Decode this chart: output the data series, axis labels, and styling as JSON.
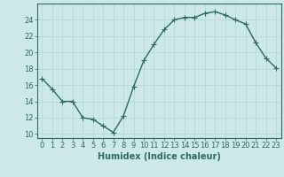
{
  "x": [
    0,
    1,
    2,
    3,
    4,
    5,
    6,
    7,
    8,
    9,
    10,
    11,
    12,
    13,
    14,
    15,
    16,
    17,
    18,
    19,
    20,
    21,
    22,
    23
  ],
  "y": [
    16.8,
    15.5,
    14.0,
    14.0,
    12.0,
    11.8,
    11.0,
    10.2,
    12.2,
    15.8,
    19.0,
    21.0,
    22.8,
    24.0,
    24.3,
    24.3,
    24.8,
    25.0,
    24.6,
    24.0,
    23.5,
    21.2,
    19.3,
    18.1
  ],
  "line_color": "#2e6b5e",
  "marker": "+",
  "markersize": 4,
  "linewidth": 1.0,
  "background_color": "#cce8e8",
  "grid_major_color": "#b8d8d8",
  "grid_minor_color": "#d8eaea",
  "xlabel": "Humidex (Indice chaleur)",
  "xlabel_fontsize": 7,
  "ylabel_ticks": [
    10,
    12,
    14,
    16,
    18,
    20,
    22,
    24
  ],
  "ylim": [
    9.5,
    26.0
  ],
  "xlim": [
    -0.5,
    23.5
  ],
  "xticks": [
    0,
    1,
    2,
    3,
    4,
    5,
    6,
    7,
    8,
    9,
    10,
    11,
    12,
    13,
    14,
    15,
    16,
    17,
    18,
    19,
    20,
    21,
    22,
    23
  ],
  "tick_fontsize": 6
}
